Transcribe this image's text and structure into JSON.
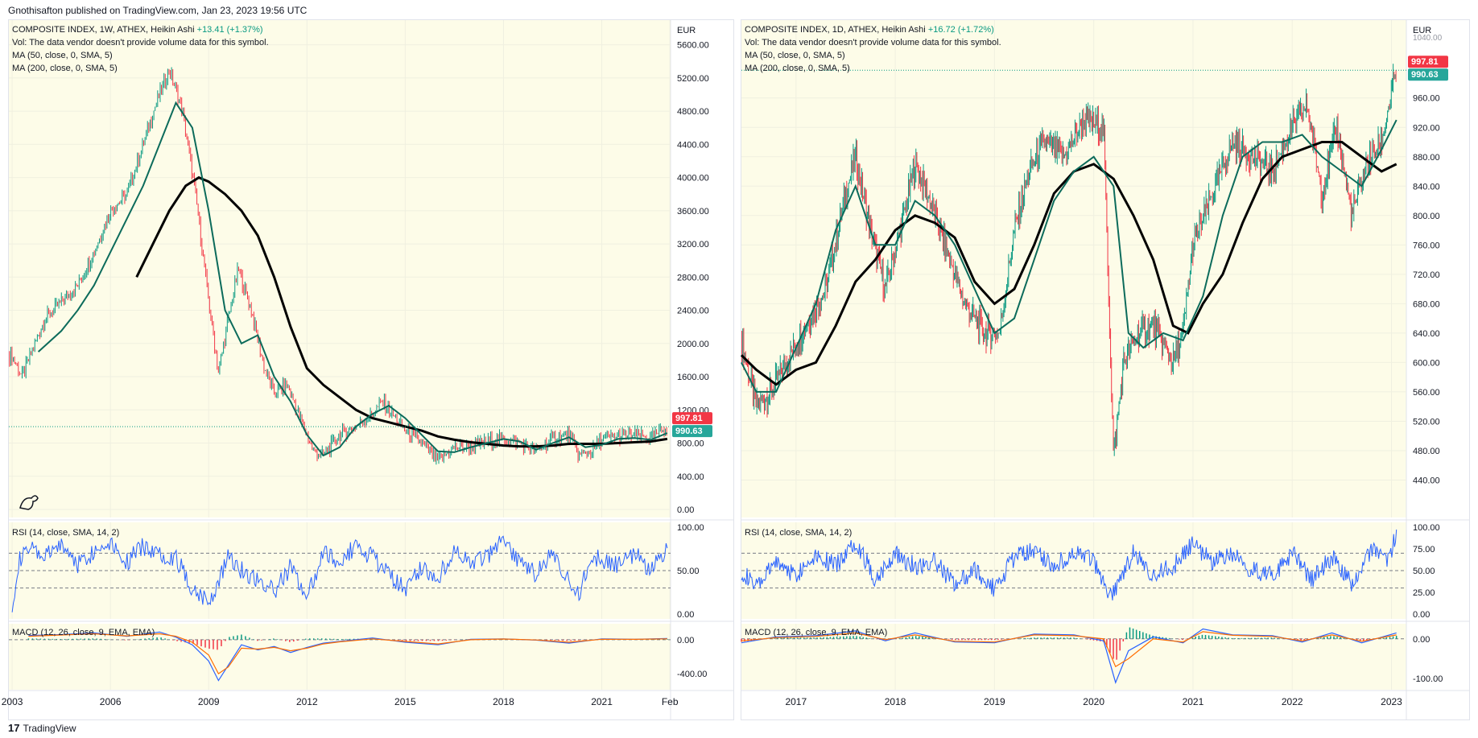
{
  "header": {
    "published": "Gnothisafton published on TradingView.com, Jan 23, 2023 19:56 UTC"
  },
  "footer": {
    "logo_mark": "17",
    "brand": "TradingView"
  },
  "chart_data": [
    {
      "type": "candlestick",
      "title": "COMPOSITE INDEX, 1W, ATHEX, Heikin Ashi",
      "change": "+13.41 (+1.37%)",
      "currency": "EUR",
      "vol_note": "Vol: The data vendor doesn't provide volume data for this symbol.",
      "ma50_label": "MA (50, close, 0, SMA, 5)",
      "ma200_label": "MA (200, close, 0, SMA, 5)",
      "price_labels": {
        "last": "997.81",
        "ma": "990.63"
      },
      "colors": {
        "up": "#089981",
        "down": "#f23645",
        "ma50": "#0c6b5b",
        "ma200": "#000000",
        "rsi": "#2962ff",
        "macd": "#2962ff",
        "signal": "#ff6d00",
        "bg": "#fdfce8",
        "last": "#f23645",
        "malabel": "#26a69a"
      },
      "xlim": [
        2002.9,
        2023.1
      ],
      "ylim": [
        0,
        5800
      ],
      "price_ticks": [
        "5600.00",
        "5200.00",
        "4800.00",
        "4400.00",
        "4000.00",
        "3600.00",
        "3200.00",
        "2800.00",
        "2400.00",
        "2000.00",
        "1600.00",
        "1200.00",
        "800.00",
        "400.00",
        "0.00"
      ],
      "x_ticks": [
        {
          "label": "2003",
          "x": 2003
        },
        {
          "label": "2006",
          "x": 2006
        },
        {
          "label": "2009",
          "x": 2009
        },
        {
          "label": "2012",
          "x": 2012
        },
        {
          "label": "2015",
          "x": 2015
        },
        {
          "label": "2018",
          "x": 2018
        },
        {
          "label": "2021",
          "x": 2021
        },
        {
          "label": "Feb",
          "x": 2023.08
        }
      ],
      "price": {
        "x": [
          2003.0,
          2003.3,
          2003.6,
          2004.0,
          2004.5,
          2005.0,
          2005.5,
          2006.0,
          2006.5,
          2007.0,
          2007.4,
          2007.8,
          2008.2,
          2008.6,
          2009.0,
          2009.3,
          2009.6,
          2009.9,
          2010.3,
          2010.7,
          2011.0,
          2011.4,
          2011.8,
          2012.2,
          2012.5,
          2013.0,
          2013.5,
          2014.0,
          2014.3,
          2014.7,
          2015.0,
          2015.5,
          2016.0,
          2016.5,
          2017.0,
          2017.5,
          2018.0,
          2018.5,
          2019.0,
          2019.5,
          2020.0,
          2020.3,
          2020.7,
          2021.0,
          2021.5,
          2022.0,
          2022.5,
          2023.0
        ],
        "y": [
          1850,
          1600,
          1900,
          2300,
          2500,
          2700,
          3100,
          3600,
          3800,
          4400,
          4900,
          5300,
          4800,
          3800,
          2500,
          1650,
          2300,
          2900,
          2400,
          1700,
          1400,
          1500,
          1100,
          700,
          650,
          900,
          1000,
          1150,
          1300,
          1100,
          950,
          800,
          580,
          750,
          750,
          820,
          850,
          800,
          700,
          850,
          900,
          650,
          700,
          850,
          880,
          900,
          850,
          1000
        ]
      },
      "ma50": {
        "x": [
          2003.8,
          2004.5,
          2005.0,
          2005.5,
          2006.0,
          2006.5,
          2007.0,
          2007.5,
          2008.0,
          2008.5,
          2009.0,
          2009.5,
          2010.0,
          2010.5,
          2011.0,
          2011.5,
          2012.0,
          2012.5,
          2013.0,
          2013.5,
          2014.0,
          2014.5,
          2015.0,
          2015.5,
          2016.0,
          2016.5,
          2017.0,
          2017.5,
          2018.0,
          2018.5,
          2019.0,
          2019.5,
          2020.0,
          2020.5,
          2021.0,
          2021.5,
          2022.0,
          2022.5,
          2023.0
        ],
        "y": [
          1900,
          2150,
          2400,
          2700,
          3100,
          3500,
          3900,
          4400,
          4900,
          4600,
          3600,
          2400,
          2000,
          2100,
          1600,
          1300,
          900,
          650,
          750,
          1000,
          1150,
          1250,
          1100,
          900,
          700,
          690,
          750,
          800,
          850,
          820,
          720,
          800,
          870,
          750,
          780,
          850,
          860,
          840,
          920
        ]
      },
      "ma200": {
        "x": [
          2006.8,
          2007.3,
          2007.8,
          2008.3,
          2008.7,
          2009.0,
          2009.5,
          2010.0,
          2010.5,
          2011.0,
          2011.5,
          2012.0,
          2012.5,
          2013.0,
          2013.5,
          2014.0,
          2014.5,
          2015.0,
          2015.5,
          2016.0,
          2016.5,
          2017.0,
          2017.5,
          2018.0,
          2018.5,
          2019.0,
          2019.5,
          2020.0,
          2020.5,
          2021.0,
          2021.5,
          2022.0,
          2022.5,
          2023.0
        ],
        "y": [
          2800,
          3200,
          3600,
          3900,
          4000,
          3950,
          3800,
          3600,
          3300,
          2800,
          2200,
          1700,
          1500,
          1350,
          1200,
          1100,
          1050,
          1000,
          950,
          880,
          840,
          810,
          790,
          770,
          760,
          760,
          770,
          790,
          790,
          790,
          800,
          810,
          820,
          850
        ]
      },
      "rsi": {
        "label": "RSI (14, close, SMA, 14, 2)",
        "ticks": [
          "100.00",
          "50.00",
          "0.00"
        ],
        "ylim": [
          0,
          100
        ],
        "bands": [
          70,
          50,
          30
        ],
        "x": [
          2003.0,
          2003.2,
          2003.5,
          2004.0,
          2004.5,
          2005.0,
          2005.5,
          2006.0,
          2006.5,
          2007.0,
          2007.5,
          2008.0,
          2008.5,
          2009.0,
          2009.3,
          2009.6,
          2010.0,
          2010.5,
          2011.0,
          2011.5,
          2012.0,
          2012.5,
          2013.0,
          2013.5,
          2014.0,
          2014.5,
          2015.0,
          2015.5,
          2016.0,
          2016.5,
          2017.0,
          2017.5,
          2018.0,
          2018.5,
          2019.0,
          2019.5,
          2020.0,
          2020.3,
          2020.7,
          2021.0,
          2021.5,
          2022.0,
          2022.5,
          2023.0
        ],
        "y": [
          10,
          60,
          75,
          65,
          80,
          58,
          72,
          85,
          60,
          78,
          70,
          65,
          30,
          15,
          35,
          70,
          50,
          40,
          25,
          55,
          20,
          70,
          60,
          80,
          65,
          45,
          30,
          55,
          40,
          75,
          55,
          65,
          85,
          60,
          45,
          70,
          40,
          20,
          70,
          60,
          55,
          70,
          50,
          75
        ]
      },
      "macd": {
        "label": "MACD (12, 26, close, 9, EMA, EMA)",
        "ticks": [
          "0.00",
          "-400.00"
        ],
        "ylim": [
          -550,
          150
        ],
        "x": [
          2003.5,
          2004.5,
          2005.5,
          2006.5,
          2007.5,
          2008.0,
          2008.5,
          2009.0,
          2009.3,
          2009.6,
          2010.0,
          2010.5,
          2011.0,
          2011.5,
          2012.0,
          2012.5,
          2013.0,
          2014.0,
          2015.0,
          2016.0,
          2017.0,
          2018.0,
          2019.0,
          2020.0,
          2021.0,
          2022.0,
          2023.0
        ],
        "y": [
          50,
          60,
          80,
          40,
          90,
          30,
          -60,
          -250,
          -480,
          -300,
          -60,
          -120,
          -80,
          -150,
          -90,
          -40,
          -20,
          20,
          -30,
          -60,
          5,
          10,
          -5,
          -40,
          10,
          5,
          15
        ],
        "signal": [
          40,
          55,
          70,
          45,
          70,
          40,
          -30,
          -180,
          -400,
          -320,
          -100,
          -110,
          -90,
          -130,
          -100,
          -50,
          -25,
          10,
          -20,
          -50,
          0,
          8,
          -3,
          -30,
          5,
          4,
          10
        ]
      }
    },
    {
      "type": "candlestick",
      "title": "COMPOSITE INDEX, 1D, ATHEX, Heikin Ashi",
      "change": "+16.72 (+1.72%)",
      "currency": "EUR",
      "vol_note": "Vol: The data vendor doesn't provide volume data for this symbol.",
      "ma50_label": "MA (50, close, 0, SMA, 5)",
      "ma200_label": "MA (200, close, 0, SMA, 5)",
      "price_labels": {
        "last": "997.81",
        "ma": "990.63",
        "top_partial": "1040.00"
      },
      "colors": {
        "up": "#089981",
        "down": "#f23645",
        "ma50": "#0c6b5b",
        "ma200": "#000000",
        "rsi": "#2962ff",
        "macd": "#2962ff",
        "signal": "#ff6d00",
        "bg": "#fdfce8",
        "last": "#f23645",
        "malabel": "#26a69a"
      },
      "xlim": [
        2016.45,
        2023.15
      ],
      "ylim": [
        400,
        1055
      ],
      "price_ticks": [
        "960.00",
        "920.00",
        "880.00",
        "840.00",
        "800.00",
        "760.00",
        "720.00",
        "680.00",
        "640.00",
        "600.00",
        "560.00",
        "520.00",
        "480.00",
        "440.00"
      ],
      "x_ticks": [
        {
          "label": "2017",
          "x": 2017
        },
        {
          "label": "2018",
          "x": 2018
        },
        {
          "label": "2019",
          "x": 2019
        },
        {
          "label": "2020",
          "x": 2020
        },
        {
          "label": "2021",
          "x": 2021
        },
        {
          "label": "2022",
          "x": 2022
        },
        {
          "label": "2023",
          "x": 2023
        }
      ],
      "price": {
        "x": [
          2016.45,
          2016.6,
          2016.75,
          2016.9,
          2017.1,
          2017.3,
          2017.5,
          2017.6,
          2017.75,
          2017.9,
          2018.05,
          2018.2,
          2018.35,
          2018.5,
          2018.7,
          2018.9,
          2019.05,
          2019.2,
          2019.35,
          2019.5,
          2019.7,
          2019.9,
          2020.1,
          2020.2,
          2020.3,
          2020.45,
          2020.6,
          2020.8,
          2020.9,
          2021.0,
          2021.2,
          2021.4,
          2021.6,
          2021.8,
          2022.0,
          2022.15,
          2022.3,
          2022.45,
          2022.6,
          2022.75,
          2022.9,
          2023.05
        ],
        "y": [
          630,
          540,
          560,
          600,
          650,
          700,
          830,
          880,
          780,
          700,
          780,
          870,
          820,
          760,
          680,
          640,
          640,
          780,
          860,
          900,
          880,
          930,
          920,
          470,
          600,
          640,
          650,
          600,
          640,
          760,
          830,
          900,
          880,
          860,
          920,
          950,
          830,
          920,
          800,
          870,
          900,
          1000
        ]
      },
      "ma50": {
        "x": [
          2016.45,
          2016.6,
          2016.8,
          2017.0,
          2017.2,
          2017.4,
          2017.6,
          2017.8,
          2018.0,
          2018.2,
          2018.4,
          2018.6,
          2018.8,
          2019.0,
          2019.2,
          2019.4,
          2019.6,
          2019.8,
          2020.0,
          2020.2,
          2020.35,
          2020.5,
          2020.7,
          2020.9,
          2021.1,
          2021.3,
          2021.5,
          2021.7,
          2021.9,
          2022.1,
          2022.3,
          2022.5,
          2022.7,
          2022.9,
          2023.05
        ],
        "y": [
          600,
          560,
          560,
          620,
          680,
          780,
          840,
          760,
          760,
          820,
          800,
          760,
          700,
          640,
          660,
          740,
          820,
          860,
          880,
          840,
          640,
          620,
          640,
          630,
          690,
          800,
          880,
          900,
          900,
          910,
          880,
          860,
          840,
          890,
          930
        ]
      },
      "ma200": {
        "x": [
          2016.45,
          2016.6,
          2016.8,
          2017.0,
          2017.2,
          2017.4,
          2017.6,
          2017.8,
          2018.0,
          2018.2,
          2018.4,
          2018.6,
          2018.8,
          2019.0,
          2019.2,
          2019.4,
          2019.6,
          2019.8,
          2020.0,
          2020.2,
          2020.4,
          2020.6,
          2020.8,
          2020.95,
          2021.1,
          2021.3,
          2021.5,
          2021.7,
          2021.9,
          2022.1,
          2022.3,
          2022.5,
          2022.7,
          2022.9,
          2023.05
        ],
        "y": [
          610,
          590,
          570,
          590,
          600,
          650,
          710,
          740,
          780,
          800,
          790,
          770,
          710,
          680,
          700,
          760,
          830,
          860,
          870,
          850,
          800,
          740,
          650,
          640,
          680,
          720,
          790,
          850,
          880,
          890,
          900,
          900,
          880,
          860,
          870
        ]
      },
      "rsi": {
        "label": "RSI (14, close, SMA, 14, 2)",
        "ticks": [
          "100.00",
          "75.00",
          "50.00",
          "25.00",
          "0.00"
        ],
        "ylim": [
          0,
          100
        ],
        "bands": [
          70,
          50,
          30
        ],
        "x": [
          2016.45,
          2016.6,
          2016.8,
          2017.0,
          2017.2,
          2017.4,
          2017.6,
          2017.8,
          2018.0,
          2018.2,
          2018.4,
          2018.6,
          2018.8,
          2019.0,
          2019.2,
          2019.4,
          2019.6,
          2019.8,
          2020.0,
          2020.15,
          2020.25,
          2020.4,
          2020.6,
          2020.8,
          2021.0,
          2021.2,
          2021.4,
          2021.6,
          2021.8,
          2022.0,
          2022.2,
          2022.4,
          2022.6,
          2022.8,
          2022.95,
          2023.05
        ],
        "y": [
          50,
          30,
          60,
          45,
          70,
          55,
          85,
          40,
          70,
          55,
          60,
          35,
          50,
          30,
          65,
          75,
          55,
          70,
          60,
          20,
          35,
          70,
          45,
          55,
          80,
          60,
          70,
          50,
          45,
          70,
          40,
          65,
          35,
          75,
          60,
          90
        ]
      },
      "macd": {
        "label": "MACD (12, 26, close, 9, EMA, EMA)",
        "ticks": [
          "0.00",
          "-100.00"
        ],
        "ylim": [
          -120,
          30
        ],
        "x": [
          2016.45,
          2016.8,
          2017.2,
          2017.6,
          2017.9,
          2018.2,
          2018.6,
          2019.0,
          2019.4,
          2019.8,
          2020.1,
          2020.22,
          2020.35,
          2020.6,
          2020.9,
          2021.1,
          2021.4,
          2021.8,
          2022.1,
          2022.4,
          2022.7,
          2023.05
        ],
        "y": [
          -10,
          5,
          8,
          20,
          -5,
          15,
          -8,
          -10,
          12,
          10,
          -5,
          -110,
          -30,
          5,
          -10,
          25,
          10,
          8,
          -8,
          15,
          -10,
          15
        ],
        "signal": [
          -5,
          3,
          6,
          15,
          -2,
          10,
          -6,
          -8,
          10,
          8,
          0,
          -70,
          -50,
          0,
          -8,
          18,
          9,
          6,
          -5,
          10,
          -6,
          10
        ]
      }
    }
  ]
}
